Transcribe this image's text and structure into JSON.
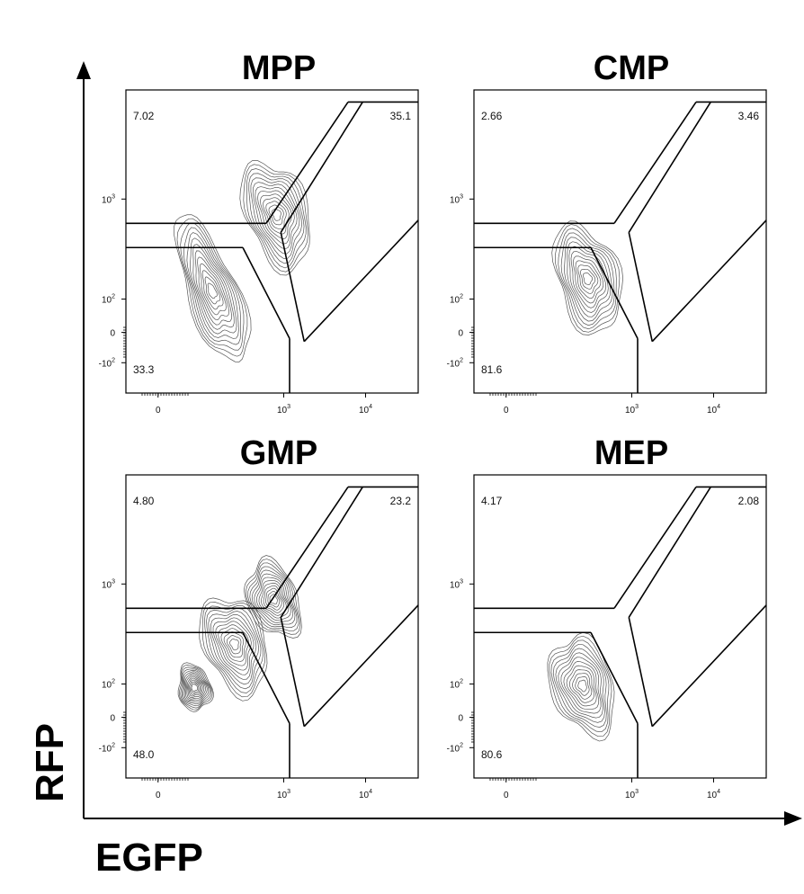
{
  "chart_data": {
    "type": "contour",
    "xlabel": "EGFP",
    "ylabel": "RFP",
    "x_ticks": [
      {
        "base": "0",
        "exp": ""
      },
      {
        "base": "10",
        "exp": "3"
      },
      {
        "base": "10",
        "exp": "4"
      }
    ],
    "y_ticks": [
      {
        "base": "-10",
        "exp": "2"
      },
      {
        "base": "0",
        "exp": ""
      },
      {
        "base": "10",
        "exp": "2"
      },
      {
        "base": "10",
        "exp": "3"
      }
    ],
    "panels": [
      {
        "title": "MPP",
        "gates": {
          "upper_left": "7.02",
          "upper_right": "35.1",
          "lower_left": "33.3"
        },
        "populations": [
          {
            "egfp": 150,
            "rfp": 120
          },
          {
            "egfp": 1100,
            "rfp": 700
          }
        ]
      },
      {
        "title": "CMP",
        "gates": {
          "upper_left": "2.66",
          "upper_right": "3.46",
          "lower_left": "81.6"
        },
        "populations": [
          {
            "egfp": 350,
            "rfp": 160
          }
        ]
      },
      {
        "title": "GMP",
        "gates": {
          "upper_left": "4.80",
          "upper_right": "23.2",
          "lower_left": "48.0"
        },
        "populations": [
          {
            "egfp": 300,
            "rfp": 250
          },
          {
            "egfp": 1000,
            "rfp": 700
          },
          {
            "egfp": 60,
            "rfp": 60
          }
        ]
      },
      {
        "title": "MEP",
        "gates": {
          "upper_left": "4.17",
          "upper_right": "2.08",
          "lower_left": "80.6"
        },
        "populations": [
          {
            "egfp": 300,
            "rfp": 80
          }
        ]
      }
    ]
  }
}
